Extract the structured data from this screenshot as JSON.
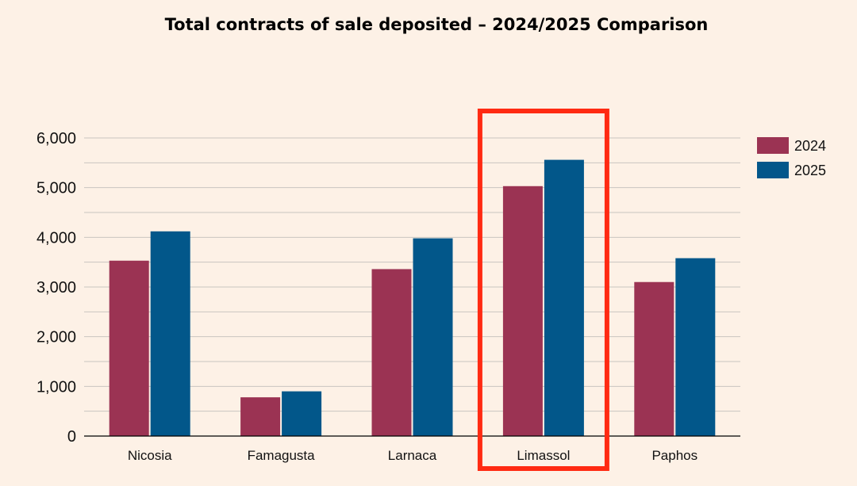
{
  "chart_data": {
    "type": "bar",
    "title": "Total contracts of sale deposited – 2024/2025 Comparison",
    "categories": [
      "Nicosia",
      "Famagusta",
      "Larnaca",
      "Limassol",
      "Paphos"
    ],
    "series": [
      {
        "name": "2024",
        "color": "#9b3353",
        "values": [
          3530,
          780,
          3360,
          5030,
          3100
        ]
      },
      {
        "name": "2025",
        "color": "#02578a",
        "values": [
          4120,
          900,
          3980,
          5560,
          3580
        ]
      }
    ],
    "y_ticks": [
      0,
      1000,
      2000,
      3000,
      4000,
      5000,
      6000
    ],
    "y_tick_labels": [
      "0",
      "1,000",
      "2,000",
      "3,000",
      "4,000",
      "5,000",
      "6,000"
    ],
    "ylim": [
      0,
      6000
    ],
    "xlabel": "",
    "ylabel": "",
    "legend_position": "top-right",
    "highlight": {
      "category": "Limassol",
      "color": "#ff2a12"
    },
    "background": "#fdf1e6"
  }
}
